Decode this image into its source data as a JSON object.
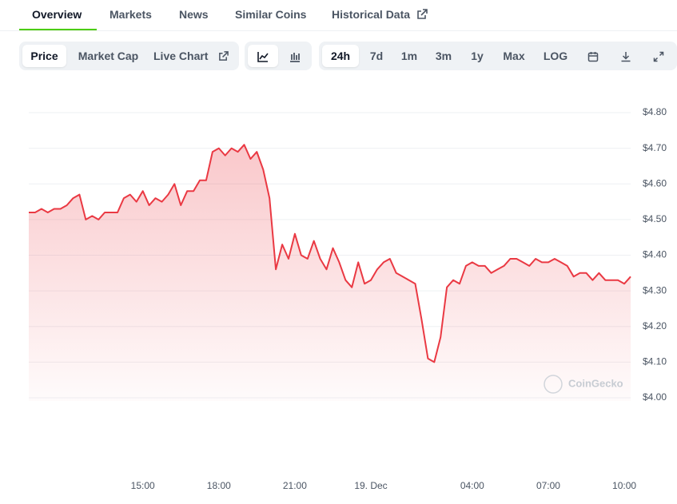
{
  "tabs": [
    "Overview",
    "Markets",
    "News",
    "Similar Coins",
    "Historical Data"
  ],
  "toolbar": {
    "views": [
      "Price",
      "Market Cap",
      "Live Chart"
    ],
    "ranges": [
      "24h",
      "7d",
      "1m",
      "3m",
      "1y",
      "Max",
      "LOG"
    ]
  },
  "chart_data": {
    "type": "line",
    "categories": [
      null,
      null,
      null,
      null,
      null,
      null,
      null,
      null,
      null,
      null,
      null,
      null,
      null,
      null,
      null,
      null,
      null,
      null,
      "15:00",
      null,
      null,
      null,
      null,
      null,
      null,
      null,
      null,
      null,
      null,
      null,
      "18:00",
      null,
      null,
      null,
      null,
      null,
      null,
      null,
      null,
      null,
      null,
      null,
      "21:00",
      null,
      null,
      null,
      null,
      null,
      null,
      null,
      null,
      null,
      null,
      null,
      "19. Dec",
      null,
      null,
      null,
      null,
      null,
      null,
      null,
      null,
      null,
      null,
      null,
      null,
      null,
      null,
      null,
      "04:00",
      null,
      null,
      null,
      null,
      null,
      null,
      null,
      null,
      null,
      null,
      null,
      "07:00",
      null,
      null,
      null,
      null,
      null,
      null,
      null,
      null,
      null,
      null,
      null,
      "10:00",
      null
    ],
    "series": [
      {
        "name": "Price",
        "color": "#ea3943",
        "values": [
          4.52,
          4.52,
          4.53,
          4.52,
          4.53,
          4.53,
          4.54,
          4.56,
          4.57,
          4.5,
          4.51,
          4.5,
          4.52,
          4.52,
          4.52,
          4.56,
          4.57,
          4.55,
          4.58,
          4.54,
          4.56,
          4.55,
          4.57,
          4.6,
          4.54,
          4.58,
          4.58,
          4.61,
          4.61,
          4.69,
          4.7,
          4.68,
          4.7,
          4.69,
          4.71,
          4.67,
          4.69,
          4.64,
          4.56,
          4.36,
          4.43,
          4.39,
          4.46,
          4.4,
          4.39,
          4.44,
          4.39,
          4.36,
          4.42,
          4.38,
          4.33,
          4.31,
          4.38,
          4.32,
          4.33,
          4.36,
          4.38,
          4.39,
          4.35,
          4.34,
          4.33,
          4.32,
          4.22,
          4.11,
          4.1,
          4.17,
          4.31,
          4.33,
          4.32,
          4.37,
          4.38,
          4.37,
          4.37,
          4.35,
          4.36,
          4.37,
          4.39,
          4.39,
          4.38,
          4.37,
          4.39,
          4.38,
          4.38,
          4.39,
          4.38,
          4.37,
          4.34,
          4.35,
          4.35,
          4.33,
          4.35,
          4.33,
          4.33,
          4.33,
          4.32,
          4.34
        ]
      }
    ],
    "ylim": [
      4.0,
      4.8
    ],
    "yticks": [
      {
        "value": 4.0,
        "label": "$4.00"
      },
      {
        "value": 4.1,
        "label": "$4.10"
      },
      {
        "value": 4.2,
        "label": "$4.20"
      },
      {
        "value": 4.3,
        "label": "$4.30"
      },
      {
        "value": 4.4,
        "label": "$4.40"
      },
      {
        "value": 4.5,
        "label": "$4.50"
      },
      {
        "value": 4.6,
        "label": "$4.60"
      },
      {
        "value": 4.7,
        "label": "$4.70"
      },
      {
        "value": 4.8,
        "label": "$4.80"
      }
    ],
    "grid": true,
    "watermark": "CoinGecko"
  }
}
